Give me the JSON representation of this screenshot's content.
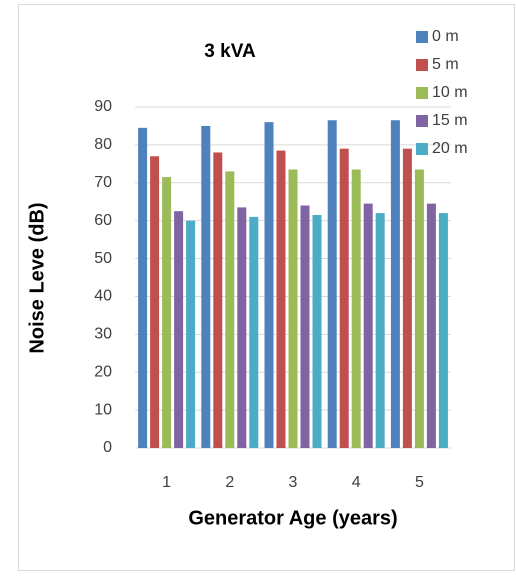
{
  "chart_data": {
    "type": "bar",
    "title": "3 kVA",
    "x_label": "Generator Age (years)",
    "y_label": "Noise Leve (dB)",
    "categories": [
      "1",
      "2",
      "3",
      "4",
      "5"
    ],
    "series": [
      {
        "name": "0 m",
        "color": "#4f81bd",
        "values": [
          84.5,
          85,
          86,
          86.5,
          86.5
        ]
      },
      {
        "name": "5 m",
        "color": "#c0504d",
        "values": [
          77,
          78,
          78.5,
          79,
          79
        ]
      },
      {
        "name": "10 m",
        "color": "#9bbb59",
        "values": [
          71.5,
          73,
          73.5,
          73.5,
          73.5
        ]
      },
      {
        "name": "15 m",
        "color": "#8064a2",
        "values": [
          62.5,
          63.5,
          64,
          64.5,
          64.5
        ]
      },
      {
        "name": "20 m",
        "color": "#4bacc6",
        "values": [
          60,
          61,
          61.5,
          62,
          62
        ]
      }
    ],
    "ylim": [
      0,
      90
    ],
    "yticks": [
      0,
      10,
      20,
      30,
      40,
      50,
      60,
      70,
      80,
      90
    ],
    "grid": true,
    "legend": "right"
  }
}
